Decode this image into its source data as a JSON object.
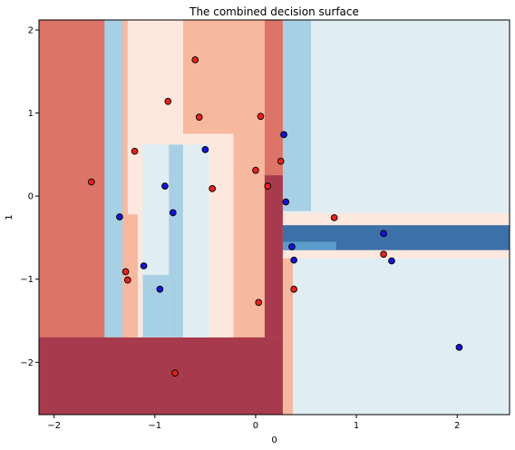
{
  "chart_data": {
    "type": "scatter",
    "title": "The combined decision surface",
    "xlabel": "0",
    "ylabel": "1",
    "xlim": [
      -2.15,
      2.52
    ],
    "ylim": [
      -2.63,
      2.12
    ],
    "xticks": [
      -2,
      -1,
      0,
      1,
      2
    ],
    "yticks": [
      -2,
      -1,
      0,
      1,
      2
    ],
    "grid": false,
    "legend": "none",
    "colors": {
      "class_red": "#e8221c",
      "class_blue": "#1414d8",
      "marker_edge": "#000000",
      "surface_darkest_red": "#a83a4e",
      "surface_dark_red": "#dc7468",
      "surface_salmon": "#f6b89e",
      "surface_light_peach": "#fce8de",
      "surface_light_blue": "#e0eef4",
      "surface_blue": "#a8d0e4",
      "surface_mid_blue": "#5c9ccc",
      "surface_dark_blue": "#3c70a8"
    },
    "surface_regions": [
      {
        "x": [
          -2.15,
          2.52
        ],
        "y": [
          -2.63,
          2.12
        ],
        "level": "surface_light_blue"
      },
      {
        "x": [
          -2.15,
          0.27
        ],
        "y": [
          -2.63,
          2.12
        ],
        "level": "surface_dark_red"
      },
      {
        "x": [
          -2.15,
          0.27
        ],
        "y": [
          -2.63,
          -1.7
        ],
        "level": "surface_darkest_red"
      },
      {
        "x": [
          -1.34,
          0.09
        ],
        "y": [
          -1.7,
          2.12
        ],
        "level": "surface_salmon"
      },
      {
        "x": [
          0.09,
          0.27
        ],
        "y": [
          -1.7,
          0.25
        ],
        "level": "surface_darkest_red"
      },
      {
        "x": [
          0.27,
          0.37
        ],
        "y": [
          -2.63,
          -0.65
        ],
        "level": "surface_salmon"
      },
      {
        "x": [
          -1.27,
          -0.72
        ],
        "y": [
          -0.22,
          2.12
        ],
        "level": "surface_light_peach"
      },
      {
        "x": [
          -1.22,
          -0.22
        ],
        "y": [
          -1.7,
          0.75
        ],
        "level": "surface_light_peach"
      },
      {
        "x": [
          -1.27,
          -1.17
        ],
        "y": [
          -1.7,
          -0.22
        ],
        "level": "surface_salmon"
      },
      {
        "x": [
          -1.5,
          -1.32
        ],
        "y": [
          -1.7,
          2.12
        ],
        "level": "surface_blue"
      },
      {
        "x": [
          -1.12,
          -0.86
        ],
        "y": [
          -1.7,
          0.62
        ],
        "level": "surface_blue"
      },
      {
        "x": [
          -1.12,
          -0.86
        ],
        "y": [
          -0.95,
          0.62
        ],
        "level": "surface_light_blue"
      },
      {
        "x": [
          -0.86,
          -0.72
        ],
        "y": [
          -1.7,
          0.62
        ],
        "level": "surface_blue"
      },
      {
        "x": [
          -0.72,
          -0.46
        ],
        "y": [
          -1.7,
          0.62
        ],
        "level": "surface_light_blue"
      },
      {
        "x": [
          0.27,
          0.55
        ],
        "y": [
          -0.18,
          2.12
        ],
        "level": "surface_blue"
      },
      {
        "x": [
          0.27,
          2.52
        ],
        "y": [
          -0.75,
          -0.2
        ],
        "level": "surface_light_peach"
      },
      {
        "x": [
          0.27,
          2.52
        ],
        "y": [
          -0.65,
          -0.35
        ],
        "level": "surface_dark_blue"
      },
      {
        "x": [
          0.27,
          0.8
        ],
        "y": [
          -0.65,
          -0.55
        ],
        "level": "surface_mid_blue"
      }
    ],
    "series": [
      {
        "class": "red",
        "points": [
          [
            -0.6,
            1.64
          ],
          [
            -0.87,
            1.14
          ],
          [
            -0.56,
            0.95
          ],
          [
            0.05,
            0.96
          ],
          [
            -1.2,
            0.54
          ],
          [
            0.0,
            0.31
          ],
          [
            0.25,
            0.42
          ],
          [
            0.12,
            0.12
          ],
          [
            -0.43,
            0.09
          ],
          [
            -1.63,
            0.17
          ],
          [
            0.78,
            -0.26
          ],
          [
            -1.29,
            -0.91
          ],
          [
            -1.27,
            -1.01
          ],
          [
            1.27,
            -0.7
          ],
          [
            0.38,
            -1.12
          ],
          [
            0.03,
            -1.28
          ],
          [
            -0.8,
            -2.13
          ]
        ]
      },
      {
        "class": "blue",
        "points": [
          [
            0.28,
            0.74
          ],
          [
            -0.5,
            0.56
          ],
          [
            -0.9,
            0.12
          ],
          [
            0.3,
            -0.07
          ],
          [
            -0.82,
            -0.2
          ],
          [
            -1.35,
            -0.25
          ],
          [
            1.27,
            -0.45
          ],
          [
            0.36,
            -0.61
          ],
          [
            0.38,
            -0.77
          ],
          [
            1.35,
            -0.78
          ],
          [
            -1.11,
            -0.84
          ],
          [
            -0.95,
            -1.12
          ],
          [
            2.02,
            -1.82
          ]
        ]
      }
    ]
  }
}
